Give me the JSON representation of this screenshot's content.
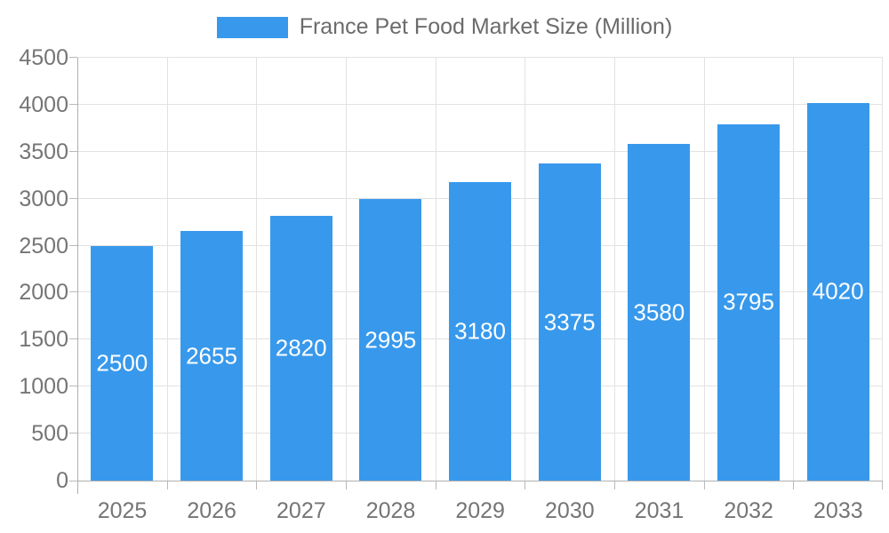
{
  "legend": {
    "label": "France Pet Food Market Size (Million)"
  },
  "colors": {
    "bar": "#3899EC",
    "grid": "#e2e2e2",
    "axis": "#b0b0b0",
    "tick": "#b9b9b9",
    "axis_label_text": "#757575",
    "legend_label_text": "#6b6b6b",
    "value_label_text": "#ffffff"
  },
  "chart_data": {
    "type": "bar",
    "title": "France Pet Food Market Size (Million)",
    "categories": [
      "2025",
      "2026",
      "2027",
      "2028",
      "2029",
      "2030",
      "2031",
      "2032",
      "2033"
    ],
    "values": [
      2500,
      2655,
      2820,
      2995,
      3180,
      3375,
      3580,
      3795,
      4020
    ],
    "series_name": "France Pet Food Market Size (Million)",
    "xlabel": "",
    "ylabel": "",
    "ylim": [
      0,
      4500
    ],
    "ytick_step": 500,
    "ytick_labels": [
      "0",
      "500",
      "1000",
      "1500",
      "2000",
      "2500",
      "3000",
      "3500",
      "4000",
      "4500"
    ],
    "value_labels_shown": true,
    "grid": true,
    "legend_position": "top"
  }
}
